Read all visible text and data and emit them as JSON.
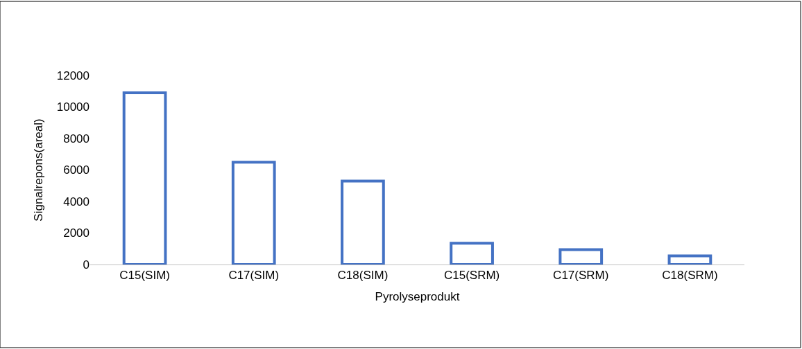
{
  "chart_data": {
    "type": "bar",
    "xlabel": "Pyrolyseprodukt",
    "ylabel": "Signalrepons(areal)",
    "categories": [
      "C15(SIM)",
      "C17(SIM)",
      "C18(SIM)",
      "C15(SRM)",
      "C17(SRM)",
      "C18(SRM)"
    ],
    "values": [
      10900,
      6500,
      5300,
      1350,
      950,
      550
    ],
    "color": "#4472c4",
    "ylim": [
      0,
      12000
    ],
    "yticks": [
      0,
      2000,
      4000,
      6000,
      8000,
      10000,
      12000
    ],
    "grid": false,
    "legend": false
  }
}
